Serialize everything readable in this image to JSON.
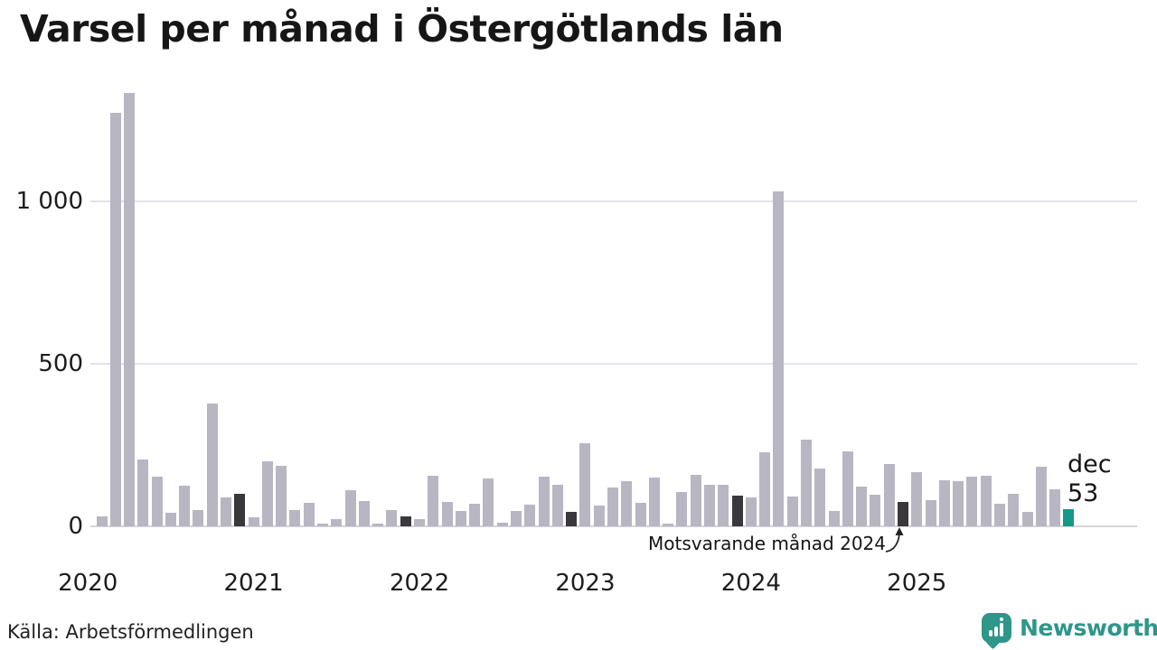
{
  "title": "Varsel per månad i Östergötlands län",
  "footer": {
    "source": "Källa: Arbetsförmedlingen",
    "brand": "Newsworthy"
  },
  "colors": {
    "bar": "#b9b6c3",
    "bar_dark": "#3a383d",
    "bar_current": "#16998a",
    "grid": "#e4e2e8",
    "axis": "#d6d4da",
    "text": "#1a1a1a",
    "brand": "#2e968a"
  },
  "chart_data": {
    "type": "bar",
    "title": "Varsel per månad i Östergötlands län",
    "xlabel": "",
    "ylabel": "",
    "x_axis": {
      "start": "2020-02",
      "end": "2025-12",
      "year_labels": [
        "2020",
        "2021",
        "2022",
        "2023",
        "2024",
        "2025"
      ]
    },
    "y_axis": {
      "ticks": [
        0,
        500,
        1000
      ],
      "tick_labels": [
        "0",
        "500",
        "1 000"
      ],
      "range": [
        0,
        1380
      ],
      "grid": true
    },
    "series": [
      {
        "name": "Varsel per månad",
        "points": [
          {
            "m": "2020-02",
            "v": 30
          },
          {
            "m": "2020-03",
            "v": 1273
          },
          {
            "m": "2020-04",
            "v": 1334
          },
          {
            "m": "2020-05",
            "v": 207
          },
          {
            "m": "2020-06",
            "v": 153
          },
          {
            "m": "2020-07",
            "v": 43
          },
          {
            "m": "2020-08",
            "v": 125
          },
          {
            "m": "2020-09",
            "v": 50
          },
          {
            "m": "2020-10",
            "v": 377
          },
          {
            "m": "2020-11",
            "v": 88
          },
          {
            "m": "2020-12",
            "v": 100
          },
          {
            "m": "2021-01",
            "v": 28
          },
          {
            "m": "2021-02",
            "v": 201
          },
          {
            "m": "2021-03",
            "v": 186
          },
          {
            "m": "2021-04",
            "v": 49
          },
          {
            "m": "2021-05",
            "v": 73
          },
          {
            "m": "2021-06",
            "v": 7
          },
          {
            "m": "2021-07",
            "v": 22
          },
          {
            "m": "2021-08",
            "v": 110
          },
          {
            "m": "2021-09",
            "v": 77
          },
          {
            "m": "2021-10",
            "v": 8
          },
          {
            "m": "2021-11",
            "v": 50
          },
          {
            "m": "2021-12",
            "v": 31
          },
          {
            "m": "2022-01",
            "v": 22
          },
          {
            "m": "2022-02",
            "v": 157
          },
          {
            "m": "2022-03",
            "v": 76
          },
          {
            "m": "2022-04",
            "v": 46
          },
          {
            "m": "2022-05",
            "v": 69
          },
          {
            "m": "2022-06",
            "v": 146
          },
          {
            "m": "2022-07",
            "v": 10
          },
          {
            "m": "2022-08",
            "v": 46
          },
          {
            "m": "2022-09",
            "v": 67
          },
          {
            "m": "2022-10",
            "v": 153
          },
          {
            "m": "2022-11",
            "v": 129
          },
          {
            "m": "2022-12",
            "v": 44
          },
          {
            "m": "2023-01",
            "v": 257
          },
          {
            "m": "2023-02",
            "v": 63
          },
          {
            "m": "2023-03",
            "v": 120
          },
          {
            "m": "2023-04",
            "v": 140
          },
          {
            "m": "2023-05",
            "v": 73
          },
          {
            "m": "2023-06",
            "v": 151
          },
          {
            "m": "2023-07",
            "v": 7
          },
          {
            "m": "2023-08",
            "v": 106
          },
          {
            "m": "2023-09",
            "v": 159
          },
          {
            "m": "2023-10",
            "v": 129
          },
          {
            "m": "2023-11",
            "v": 128
          },
          {
            "m": "2023-12",
            "v": 95
          },
          {
            "m": "2024-01",
            "v": 89
          },
          {
            "m": "2024-02",
            "v": 227
          },
          {
            "m": "2024-03",
            "v": 1032
          },
          {
            "m": "2024-04",
            "v": 92
          },
          {
            "m": "2024-05",
            "v": 266
          },
          {
            "m": "2024-06",
            "v": 177
          },
          {
            "m": "2024-07",
            "v": 47
          },
          {
            "m": "2024-08",
            "v": 232
          },
          {
            "m": "2024-09",
            "v": 122
          },
          {
            "m": "2024-10",
            "v": 98
          },
          {
            "m": "2024-11",
            "v": 191
          },
          {
            "m": "2024-12",
            "v": 74
          },
          {
            "m": "2025-01",
            "v": 166
          },
          {
            "m": "2025-02",
            "v": 80
          },
          {
            "m": "2025-03",
            "v": 143
          },
          {
            "m": "2025-04",
            "v": 140
          },
          {
            "m": "2025-05",
            "v": 152
          },
          {
            "m": "2025-06",
            "v": 157
          },
          {
            "m": "2025-07",
            "v": 69
          },
          {
            "m": "2025-08",
            "v": 101
          },
          {
            "m": "2025-09",
            "v": 44
          },
          {
            "m": "2025-10",
            "v": 183
          },
          {
            "m": "2025-11",
            "v": 113
          },
          {
            "m": "2025-12",
            "v": 53
          }
        ]
      }
    ],
    "highlight": {
      "current": "2025-12",
      "current_label": {
        "month": "dec",
        "value": "53"
      },
      "compare_months": [
        "2020-12",
        "2021-12",
        "2022-12",
        "2023-12",
        "2024-12"
      ],
      "annotation": "Motsvarande månad 2024"
    },
    "legend_position": "none"
  }
}
